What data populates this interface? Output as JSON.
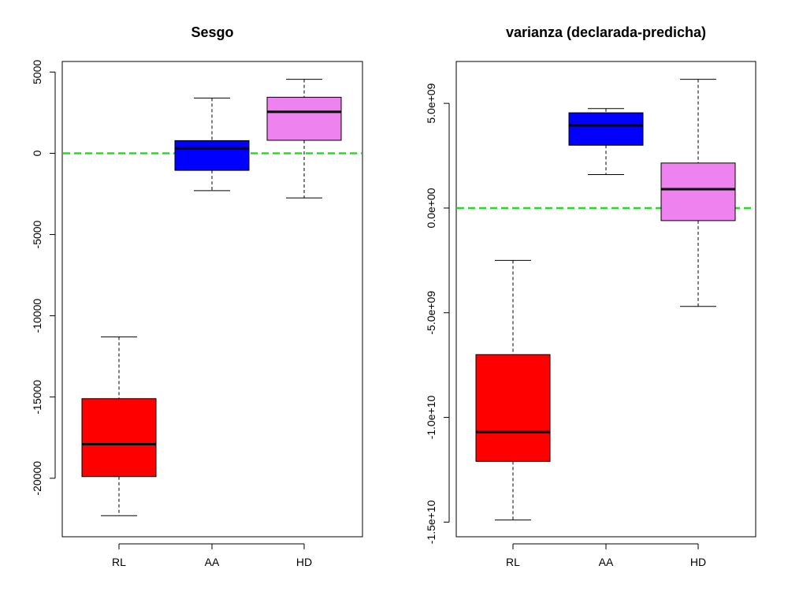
{
  "chart_data": [
    {
      "type": "boxplot",
      "title": "Sesgo",
      "xlabel": "",
      "ylabel": "",
      "categories": [
        "RL",
        "AA",
        "HD"
      ],
      "colors": [
        "#ff0000",
        "#0000ff",
        "#ee82ee"
      ],
      "boxes": [
        {
          "min": -22300,
          "q1": -19900,
          "median": -17900,
          "q3": -15100,
          "max": -11300
        },
        {
          "min": -2300,
          "q1": -1050,
          "median": 300,
          "q3": 780,
          "max": 3400
        },
        {
          "min": -2750,
          "q1": 800,
          "median": 2550,
          "q3": 3450,
          "max": 4550
        }
      ],
      "ylim": [
        -23600,
        5650
      ],
      "yticks": [
        5000,
        0,
        -5000,
        -10000,
        -15000,
        -20000
      ],
      "ytick_labels": [
        "5000",
        "0",
        "-5000",
        "-10000",
        "-15000",
        "-20000"
      ],
      "reference_line": {
        "y": 0,
        "color": "#22dd22",
        "style": "dashed"
      }
    },
    {
      "type": "boxplot",
      "title": "varianza (declarada-predicha)",
      "xlabel": "",
      "ylabel": "",
      "categories": [
        "RL",
        "AA",
        "HD"
      ],
      "colors": [
        "#ff0000",
        "#0000ff",
        "#ee82ee"
      ],
      "boxes": [
        {
          "min": -14900000000,
          "q1": -12100000000,
          "median": -10700000000,
          "q3": -7000000000,
          "max": -2500000000
        },
        {
          "min": 1600000000,
          "q1": 3000000000,
          "median": 3950000000,
          "q3": 4550000000,
          "max": 4750000000
        },
        {
          "min": -4700000000,
          "q1": -600000000,
          "median": 900000000,
          "q3": 2150000000,
          "max": 6150000000
        }
      ],
      "ylim": [
        -15700000000,
        7000000000
      ],
      "yticks": [
        5000000000,
        0,
        -5000000000,
        -10000000000,
        -15000000000
      ],
      "ytick_labels": [
        "5.0e+09",
        "0.0e+00",
        "-5.0e+09",
        "-1.0e+10",
        "-1.5e+10"
      ],
      "reference_line": {
        "y": 0,
        "color": "#22dd22",
        "style": "dashed"
      }
    }
  ]
}
